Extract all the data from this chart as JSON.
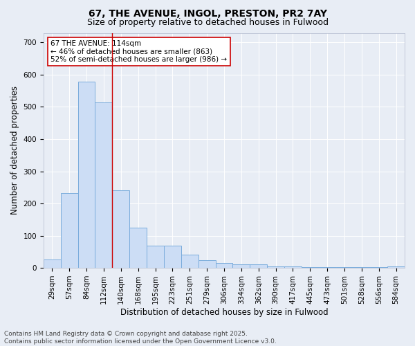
{
  "title": "67, THE AVENUE, INGOL, PRESTON, PR2 7AY",
  "subtitle": "Size of property relative to detached houses in Fulwood",
  "xlabel": "Distribution of detached houses by size in Fulwood",
  "ylabel": "Number of detached properties",
  "categories": [
    "29sqm",
    "57sqm",
    "84sqm",
    "112sqm",
    "140sqm",
    "168sqm",
    "195sqm",
    "223sqm",
    "251sqm",
    "279sqm",
    "306sqm",
    "334sqm",
    "362sqm",
    "390sqm",
    "417sqm",
    "445sqm",
    "473sqm",
    "501sqm",
    "528sqm",
    "556sqm",
    "584sqm"
  ],
  "values": [
    27,
    233,
    578,
    515,
    240,
    125,
    70,
    70,
    40,
    24,
    16,
    10,
    10,
    5,
    5,
    2,
    2,
    2,
    2,
    2,
    5
  ],
  "bar_color": "#ccddf5",
  "bar_edge_color": "#7aacdc",
  "bar_edge_width": 0.7,
  "vline_x": 3.5,
  "vline_color": "#cc0000",
  "annotation_text": "67 THE AVENUE: 114sqm\n← 46% of detached houses are smaller (863)\n52% of semi-detached houses are larger (986) →",
  "ylim": [
    0,
    730
  ],
  "yticks": [
    0,
    100,
    200,
    300,
    400,
    500,
    600,
    700
  ],
  "background_color": "#e8edf5",
  "plot_background_color": "#e8edf5",
  "grid_color": "#ffffff",
  "title_fontsize": 10,
  "subtitle_fontsize": 9,
  "xlabel_fontsize": 8.5,
  "ylabel_fontsize": 8.5,
  "tick_fontsize": 7.5,
  "annotation_fontsize": 7.5,
  "footer_line1": "Contains HM Land Registry data © Crown copyright and database right 2025.",
  "footer_line2": "Contains public sector information licensed under the Open Government Licence v3.0.",
  "footer_fontsize": 6.5
}
